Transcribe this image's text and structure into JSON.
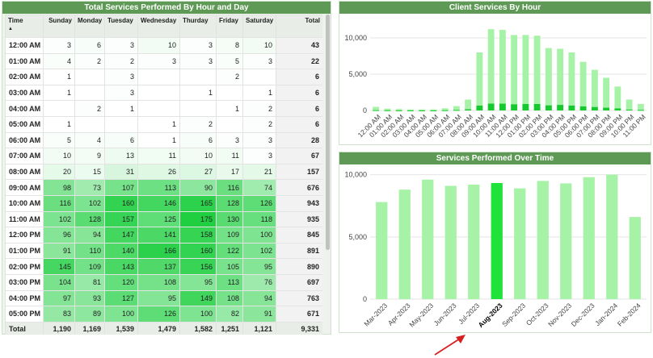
{
  "table": {
    "title": "Total Services Performed By Hour and Day",
    "columns": [
      "Time",
      "Sunday",
      "Monday",
      "Tuesday",
      "Wednesday",
      "Thurday",
      "Friday",
      "Saturday",
      "Total"
    ],
    "sort_indicator": "▲",
    "rows": [
      [
        "12:00 AM",
        "3",
        "6",
        "3",
        "10",
        "3",
        "8",
        "10",
        "43"
      ],
      [
        "01:00 AM",
        "4",
        "2",
        "2",
        "3",
        "3",
        "5",
        "3",
        "22"
      ],
      [
        "02:00 AM",
        "1",
        "",
        "3",
        "",
        "",
        "2",
        "",
        "6"
      ],
      [
        "03:00 AM",
        "1",
        "",
        "3",
        "",
        "1",
        "",
        "1",
        "6"
      ],
      [
        "04:00 AM",
        "",
        "2",
        "1",
        "",
        "",
        "1",
        "2",
        "6"
      ],
      [
        "05:00 AM",
        "1",
        "",
        "",
        "1",
        "2",
        "",
        "2",
        "6"
      ],
      [
        "06:00 AM",
        "5",
        "4",
        "6",
        "1",
        "6",
        "3",
        "3",
        "28"
      ],
      [
        "07:00 AM",
        "10",
        "9",
        "13",
        "11",
        "10",
        "11",
        "3",
        "67"
      ],
      [
        "08:00 AM",
        "20",
        "15",
        "31",
        "26",
        "27",
        "17",
        "21",
        "157"
      ],
      [
        "09:00 AM",
        "98",
        "73",
        "107",
        "113",
        "90",
        "116",
        "74",
        "676"
      ],
      [
        "10:00 AM",
        "116",
        "102",
        "160",
        "146",
        "165",
        "128",
        "126",
        "943"
      ],
      [
        "11:00 AM",
        "102",
        "128",
        "157",
        "125",
        "175",
        "130",
        "118",
        "935"
      ],
      [
        "12:00 PM",
        "96",
        "94",
        "147",
        "141",
        "158",
        "109",
        "100",
        "845"
      ],
      [
        "01:00 PM",
        "91",
        "110",
        "140",
        "166",
        "160",
        "122",
        "102",
        "891"
      ],
      [
        "02:00 PM",
        "145",
        "109",
        "143",
        "137",
        "156",
        "105",
        "95",
        "890"
      ],
      [
        "03:00 PM",
        "104",
        "81",
        "120",
        "108",
        "95",
        "113",
        "76",
        "697"
      ],
      [
        "04:00 PM",
        "97",
        "93",
        "127",
        "95",
        "149",
        "108",
        "94",
        "763"
      ],
      [
        "05:00 PM",
        "83",
        "89",
        "100",
        "126",
        "100",
        "82",
        "91",
        "671"
      ]
    ],
    "totals": [
      "Total",
      "1,190",
      "1,169",
      "1,539",
      "1,479",
      "1,582",
      "1,251",
      "1,121",
      "9,331"
    ]
  },
  "colors": {
    "header_green": "#5e9a55",
    "bar_light": "#a6f2a6",
    "bar_dark": "#16c92e",
    "bar_highlight": "#1fe33a",
    "arrow_red": "#d62020"
  },
  "chart_hour": {
    "title": "Client Services By Hour",
    "chart_data": {
      "type": "bar",
      "categories": [
        "12:00 AM",
        "01:00 AM",
        "02:00 AM",
        "03:00 AM",
        "04:00 AM",
        "05:00 AM",
        "06:00 AM",
        "07:00 AM",
        "08:00 AM",
        "09:00 AM",
        "10:00 AM",
        "11:00 AM",
        "12:00 PM",
        "01:00 PM",
        "02:00 PM",
        "03:00 PM",
        "04:00 PM",
        "05:00 PM",
        "06:00 PM",
        "07:00 PM",
        "08:00 PM",
        "09:00 PM",
        "10:00 PM",
        "11:00 PM"
      ],
      "series": [
        {
          "values": [
            500,
            250,
            200,
            150,
            150,
            150,
            300,
            600,
            1500,
            8000,
            11200,
            11100,
            10400,
            10400,
            10300,
            8600,
            8500,
            8000,
            6700,
            5600,
            4500,
            3300,
            1500,
            900
          ]
        },
        {
          "values": [
            43,
            22,
            6,
            6,
            6,
            6,
            28,
            67,
            157,
            676,
            943,
            935,
            845,
            891,
            890,
            697,
            763,
            671,
            560,
            470,
            380,
            280,
            120,
            70
          ]
        }
      ],
      "ylim": [
        0,
        12000
      ],
      "yticks": [
        "0",
        "5,000",
        "10,000"
      ],
      "ytick_values": [
        0,
        5000,
        10000
      ]
    }
  },
  "chart_time": {
    "title": "Services Performed Over Time",
    "highlight_label": "Aug-2023",
    "chart_data": {
      "type": "bar",
      "categories": [
        "Mar-2023",
        "Apr-2023",
        "May-2023",
        "Jun-2023",
        "Jul-2023",
        "Aug-2023",
        "Sep-2023",
        "Oct-2023",
        "Nov-2023",
        "Dec-2023",
        "Jan-2024",
        "Feb-2024"
      ],
      "values": [
        7800,
        8800,
        9600,
        9100,
        9200,
        9331,
        8900,
        9500,
        9300,
        9800,
        10000,
        6600
      ],
      "ylim": [
        0,
        10300
      ],
      "yticks": [
        "0",
        "5,000",
        "10,000"
      ],
      "ytick_values": [
        0,
        5000,
        10000
      ]
    }
  }
}
